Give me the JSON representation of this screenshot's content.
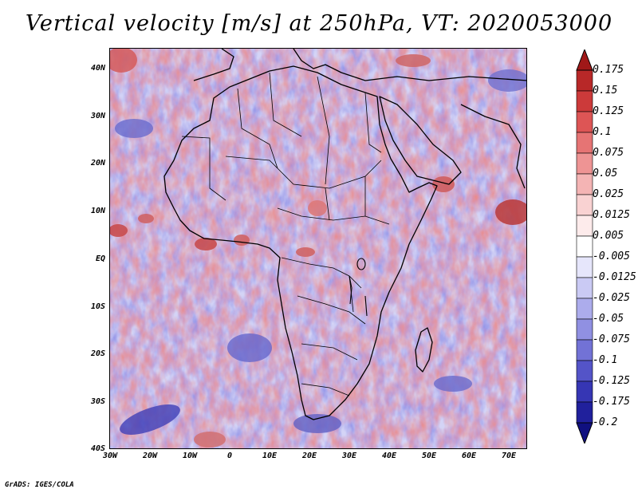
{
  "title": "Vertical velocity [m/s] at 250hPa, VT: 2020053000",
  "credit": "GrADS: IGES/COLA",
  "map": {
    "lat_labels": [
      "40N",
      "30N",
      "20N",
      "10N",
      "EQ",
      "10S",
      "20S",
      "30S",
      "40S"
    ],
    "lat_values": [
      40,
      30,
      20,
      10,
      0,
      -10,
      -20,
      -30,
      -40
    ],
    "lon_labels": [
      "30W",
      "20W",
      "10W",
      "0",
      "10E",
      "20E",
      "30E",
      "40E",
      "50E",
      "60E",
      "70E"
    ],
    "lon_values": [
      -30,
      -20,
      -10,
      0,
      10,
      20,
      30,
      40,
      50,
      60,
      70
    ],
    "lon_range": [
      -30,
      75
    ],
    "lat_range": [
      -40,
      44
    ]
  },
  "colorbar": {
    "labels": [
      "0.175",
      "0.15",
      "0.125",
      "0.1",
      "0.075",
      "0.05",
      "0.025",
      "0.0125",
      "0.005",
      "-0.005",
      "-0.0125",
      "-0.025",
      "-0.05",
      "-0.075",
      "-0.1",
      "-0.125",
      "-0.175",
      "-0.2"
    ],
    "colors": [
      "#a01818",
      "#b82828",
      "#cc3a3a",
      "#dd5555",
      "#e67474",
      "#ee9494",
      "#f4b4b4",
      "#f9d2d2",
      "#fdebeb",
      "#ffffff",
      "#e6e6fb",
      "#cacaf4",
      "#acacec",
      "#9090e2",
      "#7272d6",
      "#5454c8",
      "#3636b4",
      "#20209c",
      "#101080"
    ]
  }
}
